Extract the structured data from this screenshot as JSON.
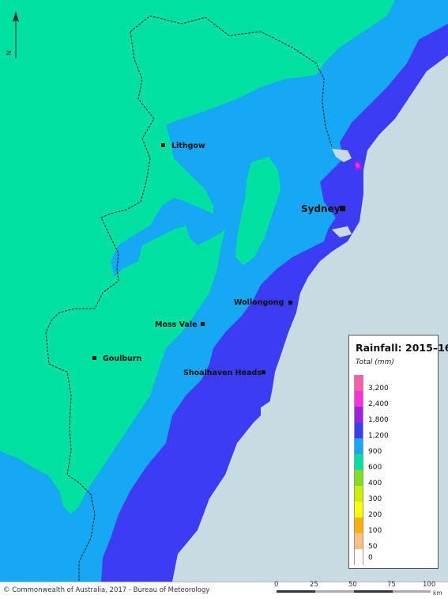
{
  "map": {
    "colors": {
      "ocean": "#c9dbe2",
      "band_600_900": "#00e0a0",
      "band_900_1200": "#17a8f5",
      "band_1200_1800": "#3c3cf5",
      "band_1800_2400": "#a020e0",
      "band_2400_3200": "#ff30e0",
      "band_3200_plus": "#ff5fa8",
      "boundary": "#1a1a1a"
    },
    "places": [
      {
        "name": "Lithgow"
      },
      {
        "name": "Sydney"
      },
      {
        "name": "Wollongong"
      },
      {
        "name": "Moss Vale"
      },
      {
        "name": "Goulburn"
      },
      {
        "name": "Shoalhaven Heads"
      }
    ],
    "north_arrow": {
      "label": "N",
      "icon": "north-arrow-icon"
    }
  },
  "legend": {
    "title": "Rainfall: 2015–16",
    "subtitle": "Total (mm)",
    "items": [
      {
        "value": "3,200",
        "color": "#ff5fa8"
      },
      {
        "value": "2,400",
        "color": "#ff30e0"
      },
      {
        "value": "1,800",
        "color": "#a020e0"
      },
      {
        "value": "1,200",
        "color": "#3c3cf5"
      },
      {
        "value": "900",
        "color": "#17a8f5"
      },
      {
        "value": "600",
        "color": "#00e0a0"
      },
      {
        "value": "400",
        "color": "#80e020"
      },
      {
        "value": "300",
        "color": "#c8f000"
      },
      {
        "value": "200",
        "color": "#ffff00"
      },
      {
        "value": "100",
        "color": "#ffb000"
      },
      {
        "value": "50",
        "color": "#ffc080"
      },
      {
        "value": "",
        "color": "#ffffff"
      }
    ],
    "zero_label": "0"
  },
  "footer": {
    "credit": "© Commonwealth of Australia, 2017 - Bureau of Meteorology",
    "scale_ticks": [
      "0",
      "25",
      "50",
      "75",
      "100"
    ],
    "scale_unit": "km"
  }
}
